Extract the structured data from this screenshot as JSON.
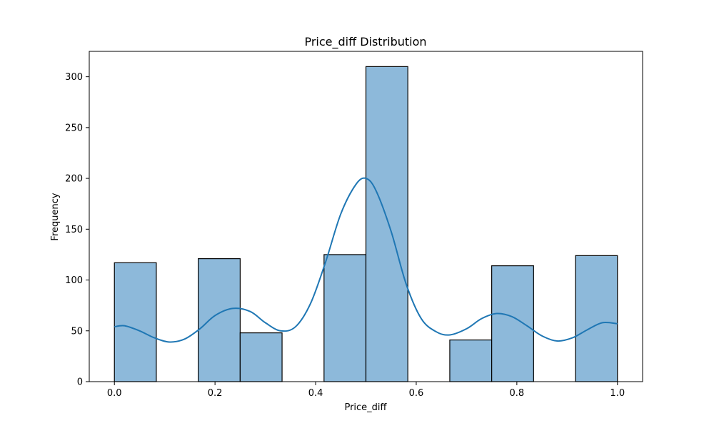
{
  "chart_data": {
    "type": "bar",
    "title": "Price_diff Distribution",
    "xlabel": "Price_diff",
    "ylabel": "Frequency",
    "xlim": [
      -0.05,
      1.05
    ],
    "ylim": [
      0,
      325
    ],
    "grid": false,
    "legend": "none",
    "bin_width": 0.0833,
    "bins": [
      {
        "start": 0.0,
        "end": 0.0833,
        "count": 117
      },
      {
        "start": 0.0833,
        "end": 0.1667,
        "count": 0
      },
      {
        "start": 0.1667,
        "end": 0.25,
        "count": 121
      },
      {
        "start": 0.25,
        "end": 0.3333,
        "count": 48
      },
      {
        "start": 0.3333,
        "end": 0.4167,
        "count": 0
      },
      {
        "start": 0.4167,
        "end": 0.5,
        "count": 125
      },
      {
        "start": 0.5,
        "end": 0.5833,
        "count": 310
      },
      {
        "start": 0.5833,
        "end": 0.6667,
        "count": 0
      },
      {
        "start": 0.6667,
        "end": 0.75,
        "count": 41
      },
      {
        "start": 0.75,
        "end": 0.8333,
        "count": 114
      },
      {
        "start": 0.8333,
        "end": 0.9167,
        "count": 0
      },
      {
        "start": 0.9167,
        "end": 1.0,
        "count": 124
      }
    ],
    "kde": {
      "x": [
        0.0,
        0.02,
        0.05,
        0.08,
        0.11,
        0.14,
        0.17,
        0.2,
        0.235,
        0.27,
        0.3,
        0.33,
        0.36,
        0.39,
        0.42,
        0.45,
        0.48,
        0.5,
        0.52,
        0.55,
        0.58,
        0.61,
        0.64,
        0.667,
        0.7,
        0.73,
        0.76,
        0.79,
        0.82,
        0.85,
        0.88,
        0.91,
        0.94,
        0.97,
        1.0
      ],
      "y": [
        54,
        55,
        50,
        43,
        39,
        42,
        52,
        65,
        72,
        69,
        58,
        50,
        54,
        77,
        118,
        165,
        194,
        200,
        188,
        148,
        96,
        62,
        49,
        46,
        52,
        62,
        67,
        64,
        55,
        45,
        40,
        43,
        51,
        58,
        57
      ]
    },
    "x_ticks": [
      {
        "value": 0.0,
        "label": "0.0"
      },
      {
        "value": 0.2,
        "label": "0.2"
      },
      {
        "value": 0.4,
        "label": "0.4"
      },
      {
        "value": 0.6,
        "label": "0.6"
      },
      {
        "value": 0.8,
        "label": "0.8"
      },
      {
        "value": 1.0,
        "label": "1.0"
      }
    ],
    "y_ticks": [
      {
        "value": 0,
        "label": "0"
      },
      {
        "value": 50,
        "label": "50"
      },
      {
        "value": 100,
        "label": "100"
      },
      {
        "value": 150,
        "label": "150"
      },
      {
        "value": 200,
        "label": "200"
      },
      {
        "value": 250,
        "label": "250"
      },
      {
        "value": 300,
        "label": "300"
      }
    ],
    "colors": {
      "bar_fill": "#8db9da",
      "bar_edge": "#000000",
      "kde_line": "#1f77b4",
      "axes": "#000000"
    }
  }
}
